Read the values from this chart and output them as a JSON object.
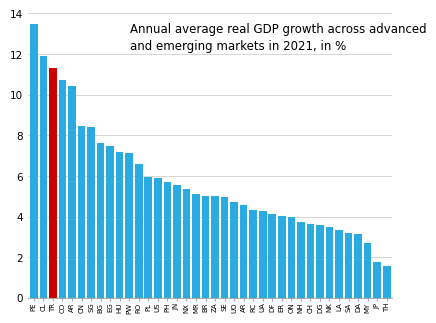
{
  "title": "Annual average real GDP growth across advanced\nand emerging markets in 2021, in %",
  "categories": [
    "PE",
    "CL",
    "TR",
    "CO",
    "AR",
    "CN",
    "SG",
    "BG",
    "EG",
    "HU",
    "PW",
    "RO",
    "PL",
    "US",
    "PH",
    "JN",
    "NX",
    "MR",
    "BR",
    "ZA",
    "SE",
    "UO",
    "AR",
    "RC",
    "UA",
    "DF",
    "ER",
    "ON",
    "NH",
    "CH",
    "DG",
    "NK",
    "LA",
    "SA",
    "DA",
    "MY",
    "JP",
    "TH"
  ],
  "values": [
    13.5,
    11.9,
    11.3,
    10.7,
    10.45,
    8.45,
    8.4,
    7.6,
    7.45,
    7.2,
    7.15,
    6.6,
    5.95,
    5.9,
    5.7,
    5.55,
    5.35,
    5.1,
    5.0,
    5.0,
    4.95,
    4.7,
    4.55,
    4.3,
    4.25,
    4.15,
    4.05,
    4.0,
    3.75,
    3.65,
    3.6,
    3.5,
    3.35,
    3.2,
    3.15,
    2.7,
    1.75,
    1.55
  ],
  "highlight_index": 2,
  "default_color": "#29ABE2",
  "highlight_color": "#CC0000",
  "ylim": [
    0,
    14
  ],
  "yticks": [
    0,
    2,
    4,
    6,
    8,
    10,
    12,
    14
  ],
  "title_fontsize": 8.5,
  "xlabel_fontsize": 5.0,
  "ylabel_fontsize": 7.5,
  "background_color": "#FFFFFF"
}
